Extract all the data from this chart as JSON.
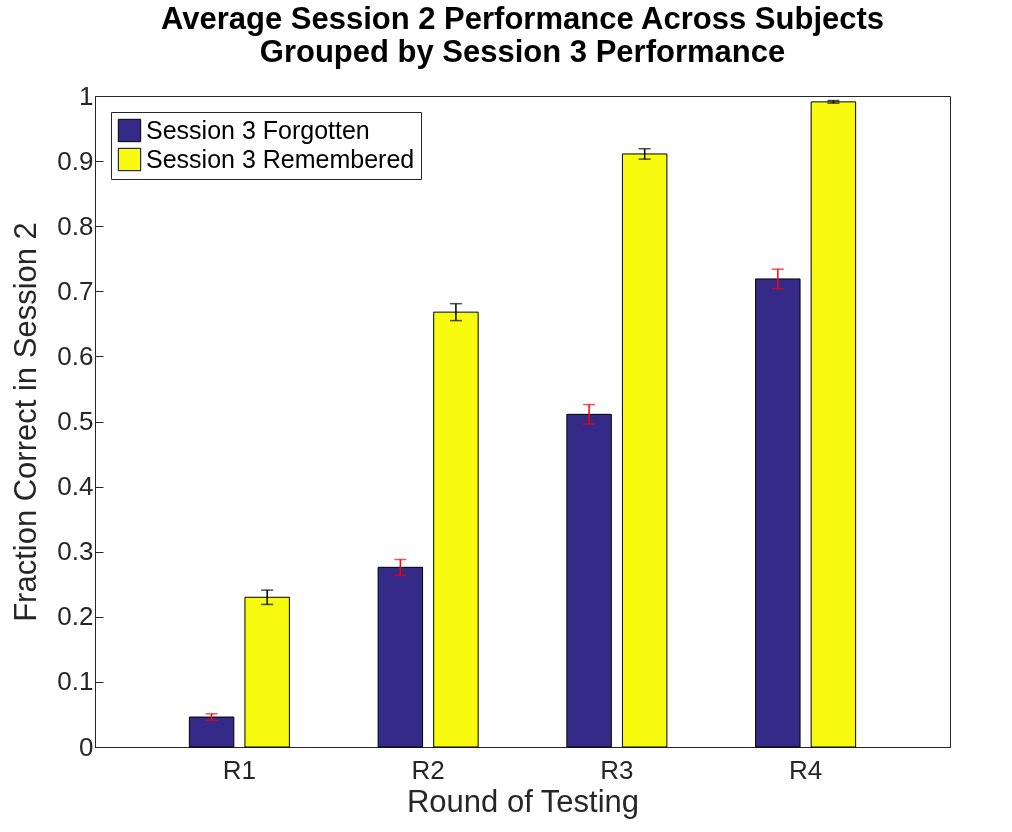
{
  "chart_data": {
    "type": "bar",
    "title": "Average Session 2 Performance Across Subjects\nGrouped by Session 3 Performance",
    "xlabel": "Round of Testing",
    "ylabel": "Fraction Correct in Session 2",
    "categories": [
      "R1",
      "R2",
      "R3",
      "R4"
    ],
    "series": [
      {
        "name": "Session 3 Forgotten",
        "color": "#352a87",
        "values": [
          0.046,
          0.276,
          0.511,
          0.719
        ],
        "errors": [
          0.005,
          0.012,
          0.015,
          0.015
        ]
      },
      {
        "name": "Session 3 Remembered",
        "color": "#f9fb0e",
        "values": [
          0.23,
          0.668,
          0.911,
          0.991
        ],
        "errors": [
          0.011,
          0.013,
          0.008,
          0.002
        ]
      }
    ],
    "ylim": [
      0,
      1
    ],
    "yticks": [
      0,
      0.1,
      0.2,
      0.3,
      0.4,
      0.5,
      0.6,
      0.7,
      0.8,
      0.9,
      1
    ],
    "legend": "top left",
    "grid": false
  }
}
